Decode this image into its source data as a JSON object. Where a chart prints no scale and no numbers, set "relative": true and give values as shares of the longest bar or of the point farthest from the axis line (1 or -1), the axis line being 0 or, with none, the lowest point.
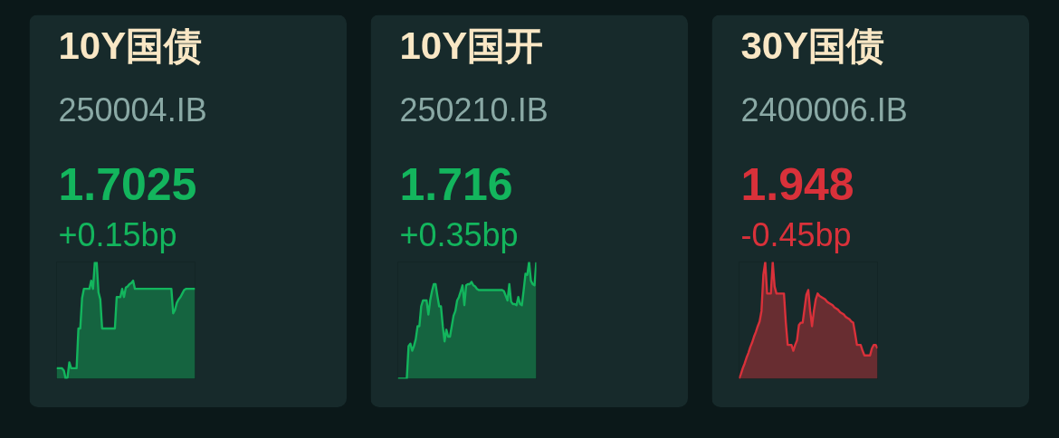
{
  "chart_data": [
    {
      "type": "area",
      "title": "10Y国债",
      "subtitle": "250004.IB",
      "annotations": [
        "1.7025",
        "+0.15bp"
      ],
      "relative": true,
      "tick_labels": false,
      "categories": [
        null,
        null,
        null,
        null,
        null,
        null,
        null,
        null,
        null,
        null,
        null,
        null,
        null,
        null,
        null,
        null,
        null,
        null,
        null,
        null,
        null,
        null,
        null,
        null,
        null,
        null,
        null,
        null,
        null,
        null,
        null,
        null,
        null,
        null,
        null,
        null,
        null,
        null,
        null,
        null,
        null,
        null,
        null,
        null,
        null,
        null,
        null,
        null,
        null,
        null,
        null,
        null,
        null,
        null,
        null,
        null,
        null,
        null,
        null,
        null,
        null,
        null,
        null,
        null,
        null,
        null,
        null,
        null,
        null,
        null,
        null,
        null,
        null,
        null,
        null,
        null,
        null
      ],
      "series": [
        {
          "color": "#13b55d",
          "values": [
            0.09,
            0.09,
            0.09,
            0.09,
            0.07,
            0,
            0.01,
            0.14,
            0.09,
            0.09,
            0.09,
            0.09,
            0.43,
            0.43,
            0.69,
            0.77,
            0.77,
            0.77,
            0.77,
            0.84,
            0.77,
            1,
            1,
            0.74,
            0.68,
            0.43,
            0.43,
            0.43,
            0.43,
            0.43,
            0.43,
            0.43,
            0.43,
            0.7,
            0.7,
            0.7,
            0.77,
            0.7,
            0.78,
            0.79,
            0.81,
            0.82,
            0.84,
            0.77,
            0.77,
            0.77,
            0.77,
            0.77,
            0.77,
            0.77,
            0.77,
            0.77,
            0.77,
            0.77,
            0.77,
            0.77,
            0.77,
            0.77,
            0.77,
            0.77,
            0.77,
            0.77,
            0.77,
            0.77,
            0.56,
            0.59,
            0.65,
            0.68,
            0.7,
            0.73,
            0.76,
            0.77,
            0.77,
            0.77,
            0.77,
            0.77,
            0.77
          ]
        }
      ]
    },
    {
      "type": "area",
      "title": "10Y国开",
      "subtitle": "250210.IB",
      "annotations": [
        "1.716",
        "+0.35bp"
      ],
      "relative": true,
      "tick_labels": false,
      "categories": [
        null,
        null,
        null,
        null,
        null,
        null,
        null,
        null,
        null,
        null,
        null,
        null,
        null,
        null,
        null,
        null,
        null,
        null,
        null,
        null,
        null,
        null,
        null,
        null,
        null,
        null,
        null,
        null,
        null,
        null,
        null,
        null,
        null,
        null,
        null,
        null,
        null,
        null,
        null,
        null,
        null,
        null,
        null,
        null,
        null,
        null,
        null,
        null,
        null,
        null,
        null,
        null,
        null,
        null,
        null,
        null,
        null,
        null,
        null,
        null,
        null,
        null,
        null,
        null,
        null,
        null,
        null,
        null,
        null,
        null,
        null,
        null,
        null,
        null,
        null,
        null,
        null,
        null
      ],
      "series": [
        {
          "color": "#13b55d",
          "values": [
            0,
            0,
            0,
            0,
            0,
            0,
            0.28,
            0.3,
            0.24,
            0.28,
            0.34,
            0.45,
            0.45,
            0.62,
            0.67,
            0.67,
            0.67,
            0.55,
            0.67,
            0.75,
            0.81,
            0.81,
            0.71,
            0.62,
            0.62,
            0.45,
            0.32,
            0.42,
            0.36,
            0.36,
            0.45,
            0.54,
            0.58,
            0.67,
            0.7,
            0.75,
            0.8,
            0.63,
            0.8,
            0.81,
            0.81,
            0.83,
            0.8,
            0.79,
            0.77,
            0.76,
            0.76,
            0.76,
            0.76,
            0.76,
            0.76,
            0.76,
            0.76,
            0.76,
            0.76,
            0.76,
            0.76,
            0.76,
            0.76,
            0.75,
            0.71,
            0.67,
            0.81,
            0.66,
            0.64,
            0.64,
            0.63,
            0.7,
            0.64,
            0.63,
            0.76,
            0.9,
            0.89,
            1,
            0.84,
            0.81,
            0.8,
            1
          ]
        }
      ]
    },
    {
      "type": "area",
      "title": "30Y国债",
      "subtitle": "2400006.IB",
      "annotations": [
        "1.948",
        "-0.45bp"
      ],
      "relative": true,
      "tick_labels": false,
      "categories": [
        null,
        null,
        null,
        null,
        null,
        null,
        null,
        null,
        null,
        null,
        null,
        null,
        null,
        null,
        null,
        null,
        null,
        null,
        null,
        null,
        null,
        null,
        null,
        null,
        null,
        null,
        null,
        null,
        null,
        null,
        null,
        null,
        null,
        null,
        null,
        null,
        null,
        null,
        null,
        null,
        null,
        null,
        null,
        null,
        null,
        null,
        null,
        null,
        null,
        null,
        null,
        null,
        null,
        null,
        null,
        null,
        null,
        null,
        null,
        null,
        null,
        null,
        null,
        null,
        null,
        null,
        null,
        null,
        null,
        null,
        null,
        null,
        null,
        null,
        null
      ],
      "series": [
        {
          "color": "#d9313a",
          "values": [
            0,
            0.04,
            0.09,
            0.13,
            0.18,
            0.22,
            0.27,
            0.31,
            0.36,
            0.4,
            0.45,
            0.49,
            0.58,
            0.89,
            1,
            0.73,
            0.73,
            0.73,
            1,
            0.79,
            0.73,
            0.73,
            0.73,
            0.73,
            0.73,
            0.48,
            0.29,
            0.29,
            0.29,
            0.24,
            0.29,
            0.33,
            0.46,
            0.48,
            0.48,
            0.6,
            0.72,
            0.76,
            0.58,
            0.45,
            0.58,
            0.68,
            0.73,
            0.71,
            0.7,
            0.69,
            0.68,
            0.66,
            0.65,
            0.64,
            0.63,
            0.61,
            0.6,
            0.59,
            0.57,
            0.56,
            0.55,
            0.53,
            0.52,
            0.51,
            0.49,
            0.48,
            0.39,
            0.29,
            0.29,
            0.29,
            0.24,
            0.2,
            0.2,
            0.2,
            0.2,
            0.26,
            0.29,
            0.29,
            0.26
          ]
        }
      ]
    }
  ]
}
